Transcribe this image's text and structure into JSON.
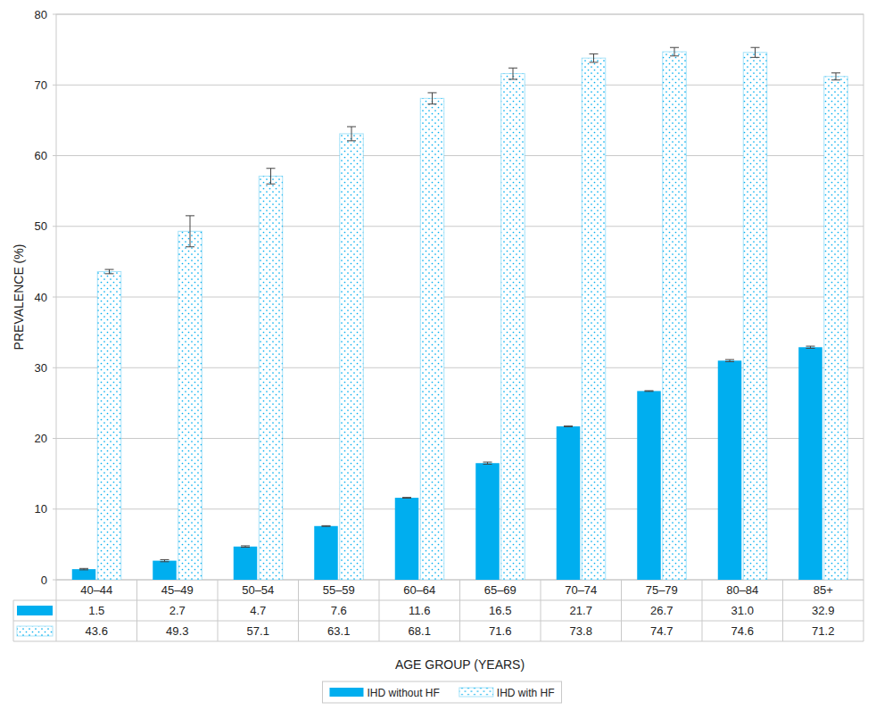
{
  "chart_data": {
    "type": "bar",
    "x_label": "AGE GROUP (YEARS)",
    "y_label": "PREVALENCE (%)",
    "categories": [
      "40–44",
      "45–49",
      "50–54",
      "55–59",
      "60–64",
      "65–69",
      "70–74",
      "75–79",
      "80–84",
      "85+"
    ],
    "series": [
      {
        "name": "IHD without HF",
        "color": "#00aeef",
        "values": [
          1.5,
          2.7,
          4.7,
          7.6,
          11.6,
          16.5,
          21.7,
          26.7,
          31.0,
          32.9
        ],
        "value_labels": [
          "1.5",
          "2.7",
          "4.7",
          "7.6",
          "11.6",
          "16.5",
          "21.7",
          "26.7",
          "31.0",
          "32.9"
        ],
        "errors": [
          0.1,
          0.15,
          0.1,
          0.05,
          0.05,
          0.15,
          0.05,
          0.05,
          0.15,
          0.15
        ]
      },
      {
        "name": "IHD with HF",
        "color": "#00aeef",
        "line_style": "dotted",
        "values": [
          43.6,
          49.3,
          57.1,
          63.1,
          68.1,
          71.6,
          73.8,
          74.7,
          74.6,
          71.2
        ],
        "value_labels": [
          "43.6",
          "49.3",
          "57.1",
          "63.1",
          "68.1",
          "71.6",
          "73.8",
          "74.7",
          "74.6",
          "71.2"
        ],
        "errors": [
          0.3,
          2.2,
          1.1,
          1.0,
          0.8,
          0.8,
          0.6,
          0.6,
          0.7,
          0.5
        ]
      }
    ],
    "ylim": [
      0,
      80
    ],
    "yticks": [
      0,
      10,
      20,
      30,
      40,
      50,
      60,
      70,
      80
    ],
    "grid": true,
    "data_labels": true,
    "legend": "bottom"
  }
}
